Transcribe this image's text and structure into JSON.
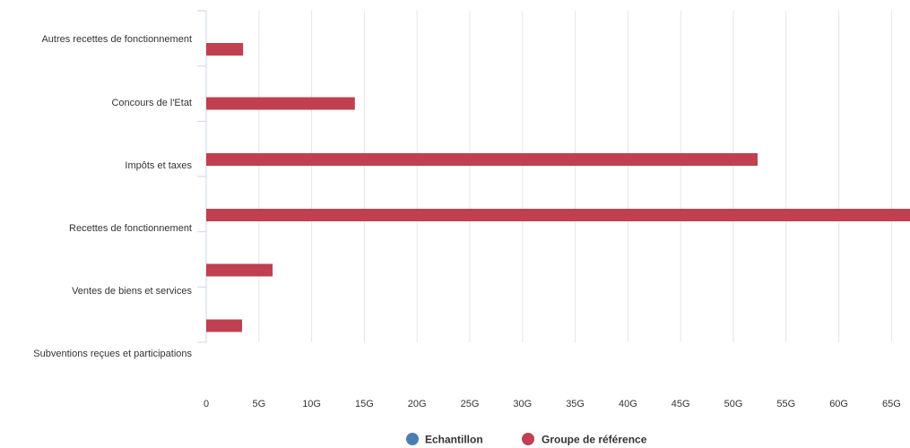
{
  "chart_data": {
    "type": "bar",
    "orientation": "horizontal",
    "categories": [
      "Autres recettes de fonctionnement",
      "Concours de l'Etat",
      "Impôts et taxes",
      "Recettes de fonctionnement",
      "Ventes de biens et services",
      "Subventions reçues et participations"
    ],
    "series": [
      {
        "name": "Echantillon",
        "color": "#4a7eb0",
        "values": [
          0,
          0,
          0,
          0,
          0,
          0
        ]
      },
      {
        "name": "Groupe de référence",
        "color": "#c0404f",
        "values": [
          3.5,
          14.1,
          52.3,
          67.5,
          6.3,
          3.4
        ]
      }
    ],
    "x_ticks": [
      "0",
      "5G",
      "10G",
      "15G",
      "20G",
      "25G",
      "30G",
      "35G",
      "40G",
      "45G",
      "50G",
      "55G",
      "60G",
      "65G"
    ],
    "xlim": [
      0,
      67
    ],
    "unit": "G",
    "grid": true,
    "legend_position": "bottom-center"
  }
}
